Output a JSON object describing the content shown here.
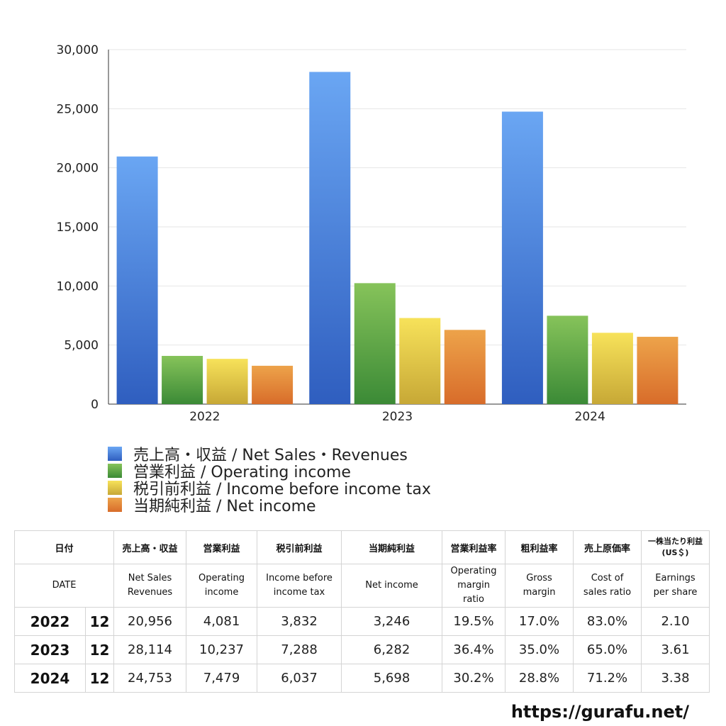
{
  "chart_data": {
    "type": "bar",
    "categories": [
      "2022",
      "2023",
      "2024"
    ],
    "series": [
      {
        "name": "売上高・収益 / Net Sales・Revenues",
        "values": [
          20956,
          28114,
          24753
        ],
        "color_top": "#6aa6f3",
        "color_bottom": "#2f5ebf"
      },
      {
        "name": "営業利益 / Operating income",
        "values": [
          4081,
          10237,
          7479
        ],
        "color_top": "#86c35a",
        "color_bottom": "#3b8a36"
      },
      {
        "name": "税引前利益 / Income before income tax",
        "values": [
          3832,
          7288,
          6037
        ],
        "color_top": "#f7e25a",
        "color_bottom": "#c7a836"
      },
      {
        "name": "当期純利益 / Net income",
        "values": [
          3246,
          6282,
          5698
        ],
        "color_top": "#eda34a",
        "color_bottom": "#d86c2a"
      }
    ],
    "yticks": [
      "0",
      "5,000",
      "10,000",
      "15,000",
      "20,000",
      "25,000",
      "30,000"
    ],
    "ylim": [
      0,
      30000
    ],
    "grid": true,
    "legend_position": "bottom-left"
  },
  "table": {
    "header_jp": [
      "日付",
      "売上高・収益",
      "営業利益",
      "税引前利益",
      "当期純利益",
      "営業利益率",
      "粗利益率",
      "売上原価率",
      "一株当たり利益\n(US＄)"
    ],
    "header_en": [
      "DATE",
      "Net Sales\nRevenues",
      "Operating\nincome",
      "Income before\nincome tax",
      "Net income",
      "Operating\nmargin\nratio",
      "Gross\nmargin",
      "Cost of\nsales ratio",
      "Earnings\nper share"
    ],
    "rows": [
      {
        "year": "2022",
        "month": "12",
        "values": [
          "20,956",
          "4,081",
          "3,832",
          "3,246",
          "19.5%",
          "17.0%",
          "83.0%",
          "2.10"
        ]
      },
      {
        "year": "2023",
        "month": "12",
        "values": [
          "28,114",
          "10,237",
          "7,288",
          "6,282",
          "36.4%",
          "35.0%",
          "65.0%",
          "3.61"
        ]
      },
      {
        "year": "2024",
        "month": "12",
        "values": [
          "24,753",
          "7,479",
          "6,037",
          "5,698",
          "30.2%",
          "28.8%",
          "71.2%",
          "3.38"
        ]
      }
    ]
  },
  "footer": {
    "url": "https://gurafu.net/"
  }
}
